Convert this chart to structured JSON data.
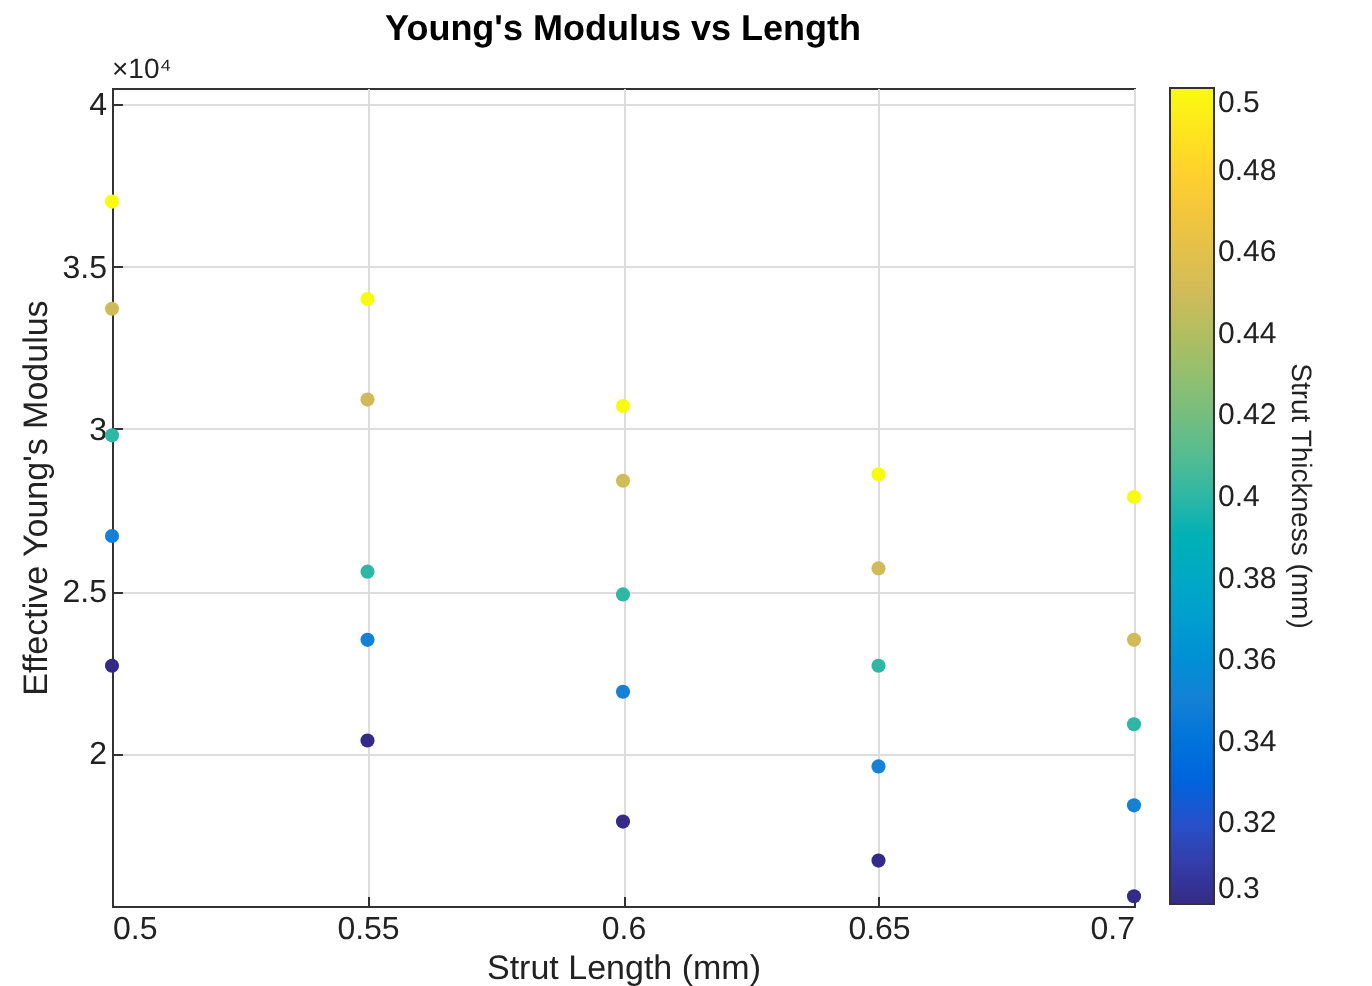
{
  "chart_data": {
    "type": "scatter",
    "title": "Young's Modulus vs Length",
    "xlabel": "Strut Length (mm)",
    "ylabel": "Effective Young's Modulus",
    "clabel": "Strut Thickness (mm)",
    "annotations": [
      "×10⁴"
    ],
    "x": [
      0.5,
      0.5,
      0.5,
      0.5,
      0.5,
      0.55,
      0.55,
      0.55,
      0.55,
      0.55,
      0.6,
      0.6,
      0.6,
      0.6,
      0.6,
      0.65,
      0.65,
      0.65,
      0.65,
      0.65,
      0.7,
      0.7,
      0.7,
      0.7,
      0.7
    ],
    "values": [
      2.27,
      2.67,
      2.98,
      3.37,
      3.7,
      2.04,
      2.35,
      2.56,
      3.09,
      3.4,
      1.79,
      2.19,
      2.49,
      2.84,
      3.07,
      1.67,
      1.96,
      2.27,
      2.57,
      2.86,
      1.56,
      1.84,
      2.09,
      2.35,
      2.79
    ],
    "cvalues": [
      0.3,
      0.35,
      0.4,
      0.45,
      0.5,
      0.3,
      0.35,
      0.4,
      0.45,
      0.5,
      0.3,
      0.35,
      0.4,
      0.45,
      0.5,
      0.3,
      0.35,
      0.4,
      0.45,
      0.5,
      0.3,
      0.35,
      0.4,
      0.45,
      0.5
    ],
    "clim": [
      0.3,
      0.5
    ],
    "cticks": [
      0.3,
      0.32,
      0.34,
      0.36,
      0.38,
      0.4,
      0.42,
      0.44,
      0.46,
      0.48,
      0.5
    ],
    "xlim": [
      0.5,
      0.7
    ],
    "xticks": [
      0.5,
      0.55,
      0.6,
      0.65,
      0.7
    ],
    "ylim": [
      1.53,
      4.05
    ],
    "yticks": [
      2,
      2.5,
      3,
      3.5,
      4
    ],
    "grid": true,
    "marker": "circle"
  }
}
